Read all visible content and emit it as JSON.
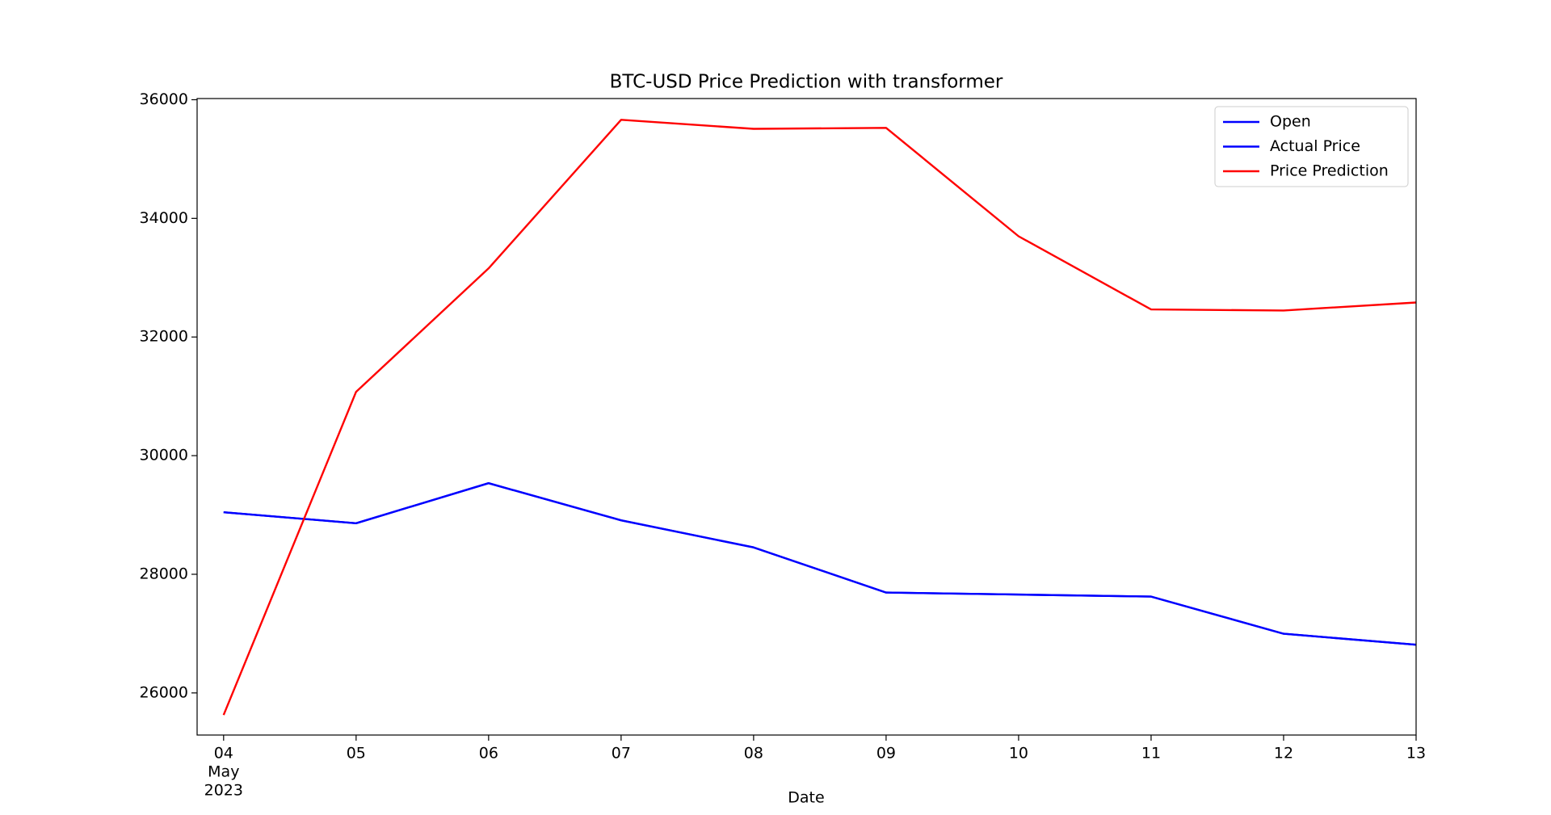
{
  "chart_data": {
    "type": "line",
    "title": "BTC-USD Price Prediction with transformer",
    "x_label": "Date",
    "x_month": "May",
    "x_year": "2023",
    "x": [
      4,
      5,
      6,
      7,
      8,
      9,
      10,
      11,
      12,
      13
    ],
    "series": [
      {
        "name": "Open",
        "color": "#0000ff",
        "values": [
          29046,
          28860,
          29536,
          28910,
          28453,
          27692,
          27658,
          27624,
          26998,
          26812
        ]
      },
      {
        "name": "Actual Price",
        "color": "#0000ff",
        "values": [
          29046,
          28860,
          29536,
          28910,
          28453,
          27692,
          27658,
          27624,
          26998,
          26812
        ]
      },
      {
        "name": "Price Prediction",
        "color": "#ff0000",
        "values": [
          25628,
          31076,
          33157,
          35662,
          35509,
          35526,
          33699,
          32464,
          32447,
          32582
        ]
      }
    ],
    "xlim": [
      3.8,
      13
    ],
    "xticks": [
      {
        "value": 4,
        "label": "04"
      },
      {
        "value": 5,
        "label": "05"
      },
      {
        "value": 6,
        "label": "06"
      },
      {
        "value": 7,
        "label": "07"
      },
      {
        "value": 8,
        "label": "08"
      },
      {
        "value": 9,
        "label": "09"
      },
      10,
      11,
      12,
      13
    ],
    "ylim": [
      25290,
      36020
    ],
    "yticks": [
      26000,
      28000,
      30000,
      32000,
      34000,
      36000
    ],
    "grid": false,
    "legend": "upper right"
  }
}
